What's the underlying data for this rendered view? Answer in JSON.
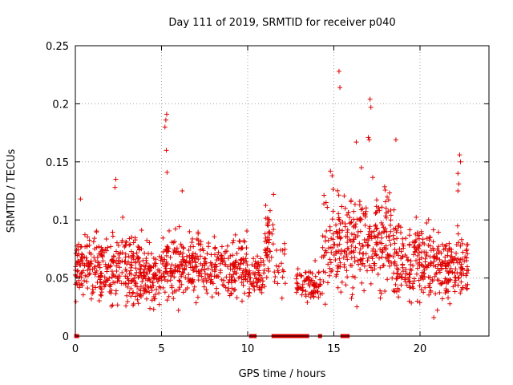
{
  "chart_data": {
    "type": "scatter",
    "title": "Day 111 of 2019, SRMTID for receiver p040",
    "xlabel": "GPS time / hours",
    "ylabel": "SRMTID / TECUs",
    "xlim": [
      0,
      24
    ],
    "ylim": [
      0,
      0.25
    ],
    "xticks": [
      0,
      5,
      10,
      15,
      20
    ],
    "xtick_labels": [
      "0",
      "5",
      "10",
      "15",
      "20"
    ],
    "yticks": [
      0,
      0.05,
      0.1,
      0.15,
      0.2,
      0.25
    ],
    "ytick_labels": [
      "0",
      "0.05",
      "0.1",
      "0.15",
      "0.2",
      "0.25"
    ],
    "grid": true,
    "marker": "plus",
    "color": "#e00000",
    "series": [
      {
        "name": "SRMTID p040",
        "clusters": [
          {
            "x_range": [
              0.0,
              2.0
            ],
            "n": 160,
            "y_center": 0.057,
            "y_spread": 0.018
          },
          {
            "x_range": [
              2.0,
              3.5
            ],
            "n": 120,
            "y_center": 0.06,
            "y_spread": 0.02
          },
          {
            "x_range": [
              3.5,
              5.0
            ],
            "n": 130,
            "y_center": 0.052,
            "y_spread": 0.018
          },
          {
            "x_range": [
              5.0,
              7.5
            ],
            "n": 200,
            "y_center": 0.06,
            "y_spread": 0.018
          },
          {
            "x_range": [
              7.5,
              10.0
            ],
            "n": 170,
            "y_center": 0.06,
            "y_spread": 0.017
          },
          {
            "x_range": [
              10.0,
              11.0
            ],
            "n": 60,
            "y_center": 0.052,
            "y_spread": 0.012
          },
          {
            "x_range": [
              11.0,
              11.5
            ],
            "n": 40,
            "y_center": 0.085,
            "y_spread": 0.02
          },
          {
            "x_range": [
              11.5,
              12.2
            ],
            "n": 20,
            "y_center": 0.06,
            "y_spread": 0.015
          },
          {
            "x_range": [
              12.8,
              14.3
            ],
            "n": 80,
            "y_center": 0.045,
            "y_spread": 0.01
          },
          {
            "x_range": [
              14.3,
              16.0
            ],
            "n": 120,
            "y_center": 0.08,
            "y_spread": 0.03
          },
          {
            "x_range": [
              16.0,
              18.5
            ],
            "n": 200,
            "y_center": 0.08,
            "y_spread": 0.028
          },
          {
            "x_range": [
              18.5,
              20.5
            ],
            "n": 160,
            "y_center": 0.065,
            "y_spread": 0.022
          },
          {
            "x_range": [
              20.5,
              22.8
            ],
            "n": 180,
            "y_center": 0.06,
            "y_spread": 0.02
          }
        ],
        "peaks": [
          {
            "x": 2.3,
            "y": 0.128
          },
          {
            "x": 2.35,
            "y": 0.135
          },
          {
            "x": 0.3,
            "y": 0.118
          },
          {
            "x": 5.2,
            "y": 0.18
          },
          {
            "x": 5.25,
            "y": 0.186
          },
          {
            "x": 5.3,
            "y": 0.191
          },
          {
            "x": 5.28,
            "y": 0.16
          },
          {
            "x": 5.32,
            "y": 0.141
          },
          {
            "x": 6.2,
            "y": 0.125
          },
          {
            "x": 11.5,
            "y": 0.122
          },
          {
            "x": 11.3,
            "y": 0.108
          },
          {
            "x": 14.8,
            "y": 0.142
          },
          {
            "x": 14.9,
            "y": 0.138
          },
          {
            "x": 15.3,
            "y": 0.228
          },
          {
            "x": 15.35,
            "y": 0.214
          },
          {
            "x": 16.3,
            "y": 0.167
          },
          {
            "x": 16.6,
            "y": 0.145
          },
          {
            "x": 17.1,
            "y": 0.204
          },
          {
            "x": 17.15,
            "y": 0.197
          },
          {
            "x": 17.0,
            "y": 0.171
          },
          {
            "x": 17.05,
            "y": 0.169
          },
          {
            "x": 18.6,
            "y": 0.169
          },
          {
            "x": 22.3,
            "y": 0.156
          },
          {
            "x": 22.35,
            "y": 0.15
          },
          {
            "x": 22.2,
            "y": 0.14
          },
          {
            "x": 22.25,
            "y": 0.131
          },
          {
            "x": 22.2,
            "y": 0.125
          },
          {
            "x": 20.8,
            "y": 0.016
          }
        ],
        "zero_values_at_x": [
          0.05,
          0.1,
          10.2,
          10.4,
          11.5,
          11.65,
          11.8,
          11.95,
          12.1,
          12.25,
          12.4,
          12.55,
          12.7,
          12.85,
          13.0,
          13.15,
          13.3,
          13.45,
          14.2,
          15.5,
          15.65,
          15.8
        ]
      }
    ]
  }
}
